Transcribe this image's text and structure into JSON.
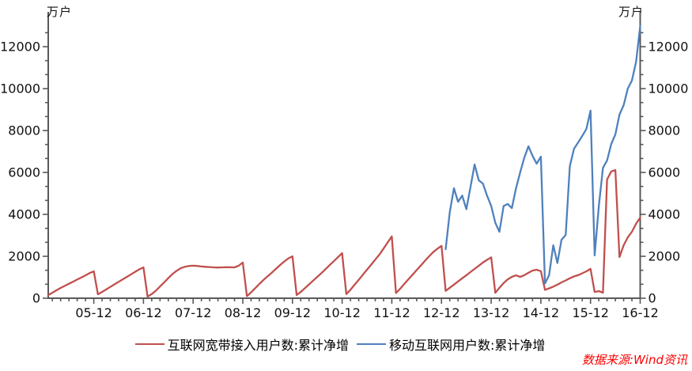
{
  "chart": {
    "unit_label": "万户",
    "source_note": "数据来源:Wind资讯"
  },
  "colors": {
    "axis": "#595959",
    "tick_text": "#111111",
    "red_series": "#c0504d",
    "blue_series": "#4f81bd",
    "source_text": "#ff0000"
  },
  "chart_data": {
    "type": "line",
    "title": "",
    "unit": "万户",
    "frequency": "monthly",
    "x_start": "2005-01",
    "x_end": "2016-12",
    "x_tick_labels": [
      "05-12",
      "06-12",
      "07-12",
      "08-12",
      "09-12",
      "10-12",
      "11-12",
      "12-12",
      "13-12",
      "14-12",
      "15-12",
      "16-12"
    ],
    "y_tick_labels": [
      "0",
      "2000",
      "4000",
      "6000",
      "8000",
      "10000",
      "12000"
    ],
    "y_axis": {
      "min": 0,
      "max": 13300,
      "major_step": 2000,
      "minor_divisions": 3
    },
    "grid": false,
    "legend_position": "bottom-center",
    "source_note": "数据来源:Wind资讯",
    "series": [
      {
        "name": "互联网宽带接入用户数:累计净增",
        "color": "#c0504d",
        "start": "2005-01",
        "values": [
          150,
          260,
          380,
          490,
          590,
          690,
          790,
          890,
          990,
          1090,
          1200,
          1283,
          190,
          300,
          420,
          540,
          660,
          780,
          900,
          1020,
          1140,
          1260,
          1380,
          1472,
          75,
          200,
          360,
          560,
          760,
          960,
          1150,
          1310,
          1430,
          1500,
          1540,
          1550,
          1540,
          1515,
          1500,
          1485,
          1470,
          1465,
          1470,
          1480,
          1475,
          1470,
          1550,
          1700,
          100,
          280,
          480,
          680,
          870,
          1050,
          1220,
          1400,
          1580,
          1750,
          1900,
          2000,
          150,
          300,
          480,
          660,
          840,
          1020,
          1200,
          1390,
          1580,
          1770,
          1960,
          2150,
          200,
          400,
          640,
          880,
          1120,
          1360,
          1600,
          1840,
          2080,
          2370,
          2660,
          2950,
          250,
          450,
          680,
          900,
          1120,
          1340,
          1560,
          1780,
          2000,
          2200,
          2360,
          2500,
          350,
          500,
          650,
          800,
          950,
          1100,
          1250,
          1400,
          1550,
          1700,
          1830,
          1950,
          260,
          500,
          720,
          900,
          1020,
          1090,
          1020,
          1100,
          1210,
          1320,
          1360,
          1290,
          400,
          470,
          550,
          650,
          755,
          850,
          950,
          1040,
          1100,
          1190,
          1283,
          1400,
          300,
          340,
          264,
          5660,
          6050,
          6113,
          1962,
          2530,
          2900,
          3170,
          3550,
          3849
        ]
      },
      {
        "name": "移动互联网用户数:累计净增",
        "color": "#4f81bd",
        "start": "2013-01",
        "values": [
          2340,
          4100,
          5250,
          4600,
          4900,
          4250,
          5300,
          6380,
          5620,
          5470,
          4900,
          4400,
          3600,
          3170,
          4400,
          4500,
          4300,
          5250,
          6000,
          6700,
          7250,
          6790,
          6420,
          6750,
          700,
          1100,
          2530,
          1680,
          2790,
          3020,
          6300,
          7130,
          7430,
          7740,
          8080,
          8950,
          2040,
          4400,
          6220,
          6570,
          7360,
          7810,
          8760,
          9210,
          10000,
          10380,
          11280,
          12980
        ]
      }
    ]
  }
}
